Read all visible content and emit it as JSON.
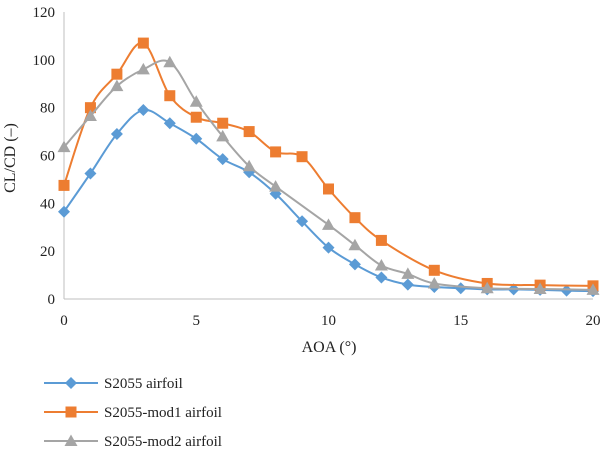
{
  "chart_data": {
    "type": "line",
    "title": "",
    "xlabel": "AOA (°)",
    "ylabel": "CL/CD (–)",
    "xlim": [
      0,
      20
    ],
    "ylim": [
      0,
      120
    ],
    "xticks": [
      0,
      5,
      10,
      15,
      20
    ],
    "yticks": [
      0,
      20,
      40,
      60,
      80,
      100,
      120
    ],
    "grid": false,
    "legend_position": "bottom-left",
    "series": [
      {
        "name": "S2055 airfoil",
        "color": "#5b9bd5",
        "marker": "diamond",
        "x": [
          0,
          1,
          2,
          3,
          4,
          5,
          6,
          7,
          8,
          9,
          10,
          11,
          12,
          13,
          14,
          15,
          16,
          17,
          18,
          19,
          20
        ],
        "y": [
          36.5,
          52.5,
          69,
          79,
          73.5,
          67,
          58.5,
          53,
          44,
          32.5,
          21.5,
          14.5,
          9,
          6,
          5,
          4.5,
          4,
          4,
          3.8,
          3.5,
          3.3
        ]
      },
      {
        "name": "S2055-mod1 airfoil",
        "color": "#ed7d31",
        "marker": "square",
        "x": [
          0,
          1,
          2,
          3,
          4,
          5,
          6,
          7,
          8,
          9,
          10,
          11,
          12,
          14,
          16,
          18,
          20
        ],
        "y": [
          47.5,
          80,
          94,
          107,
          85,
          76,
          73.5,
          70,
          61.5,
          59.5,
          46,
          34,
          24.5,
          12,
          6.5,
          5.8,
          5.5
        ]
      },
      {
        "name": "S2055-mod2 airfoil",
        "color": "#a5a5a5",
        "marker": "triangle",
        "x": [
          0,
          1,
          2,
          3,
          4,
          5,
          6,
          7,
          8,
          10,
          11,
          12,
          13,
          14,
          16,
          18,
          20
        ],
        "y": [
          63.5,
          76.5,
          89,
          96,
          99,
          82.5,
          68,
          55.5,
          47,
          31,
          22.5,
          14,
          10.5,
          6.5,
          4.5,
          4.2,
          3.8
        ]
      }
    ]
  }
}
